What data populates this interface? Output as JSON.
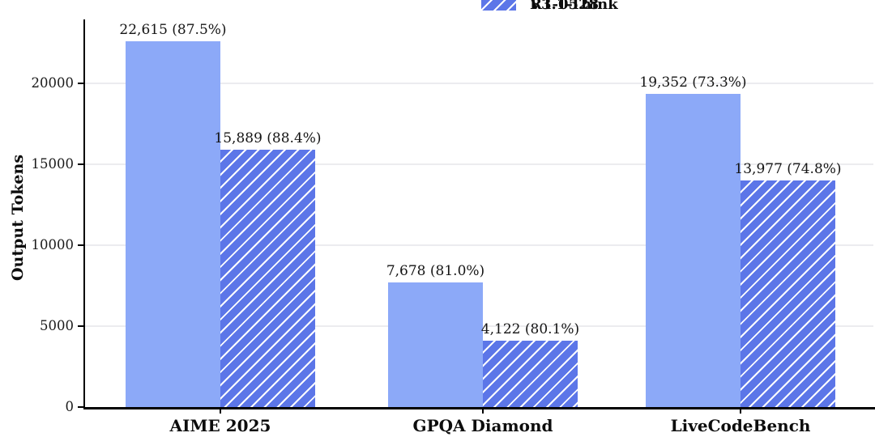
{
  "chart_data": {
    "type": "bar",
    "title": "",
    "categories": [
      "AIME 2025",
      "GPQA Diamond",
      "LiveCodeBench"
    ],
    "series": [
      {
        "name": "R1-0528",
        "style": "solid",
        "values": [
          22615,
          7678,
          19352
        ],
        "labels": [
          "22,615 (87.5%)",
          "7,678 (81.0%)",
          "19,352 (73.3%)"
        ]
      },
      {
        "name": "V3.1-Think",
        "style": "hatched",
        "values": [
          15889,
          4122,
          13977
        ],
        "labels": [
          "15,889 (88.4%)",
          "4,122 (80.1%)",
          "13,977 (74.8%)"
        ]
      }
    ],
    "xlabel": "",
    "ylabel": "Output Tokens",
    "yticks": [
      0,
      5000,
      10000,
      15000,
      20000
    ],
    "ytick_labels": [
      "0",
      "5000",
      "10000",
      "15000",
      "20000"
    ],
    "ylim": [
      0,
      23500
    ],
    "grid": "horizontal",
    "legend_position": "top-center",
    "colors": {
      "solid_bar": "#8CA9F8",
      "hatch_fill": "#5C76E8",
      "hatch_line": "#FFFFFF",
      "grid": "#ECECEF",
      "axis": "#000000",
      "text": "#141414"
    }
  }
}
